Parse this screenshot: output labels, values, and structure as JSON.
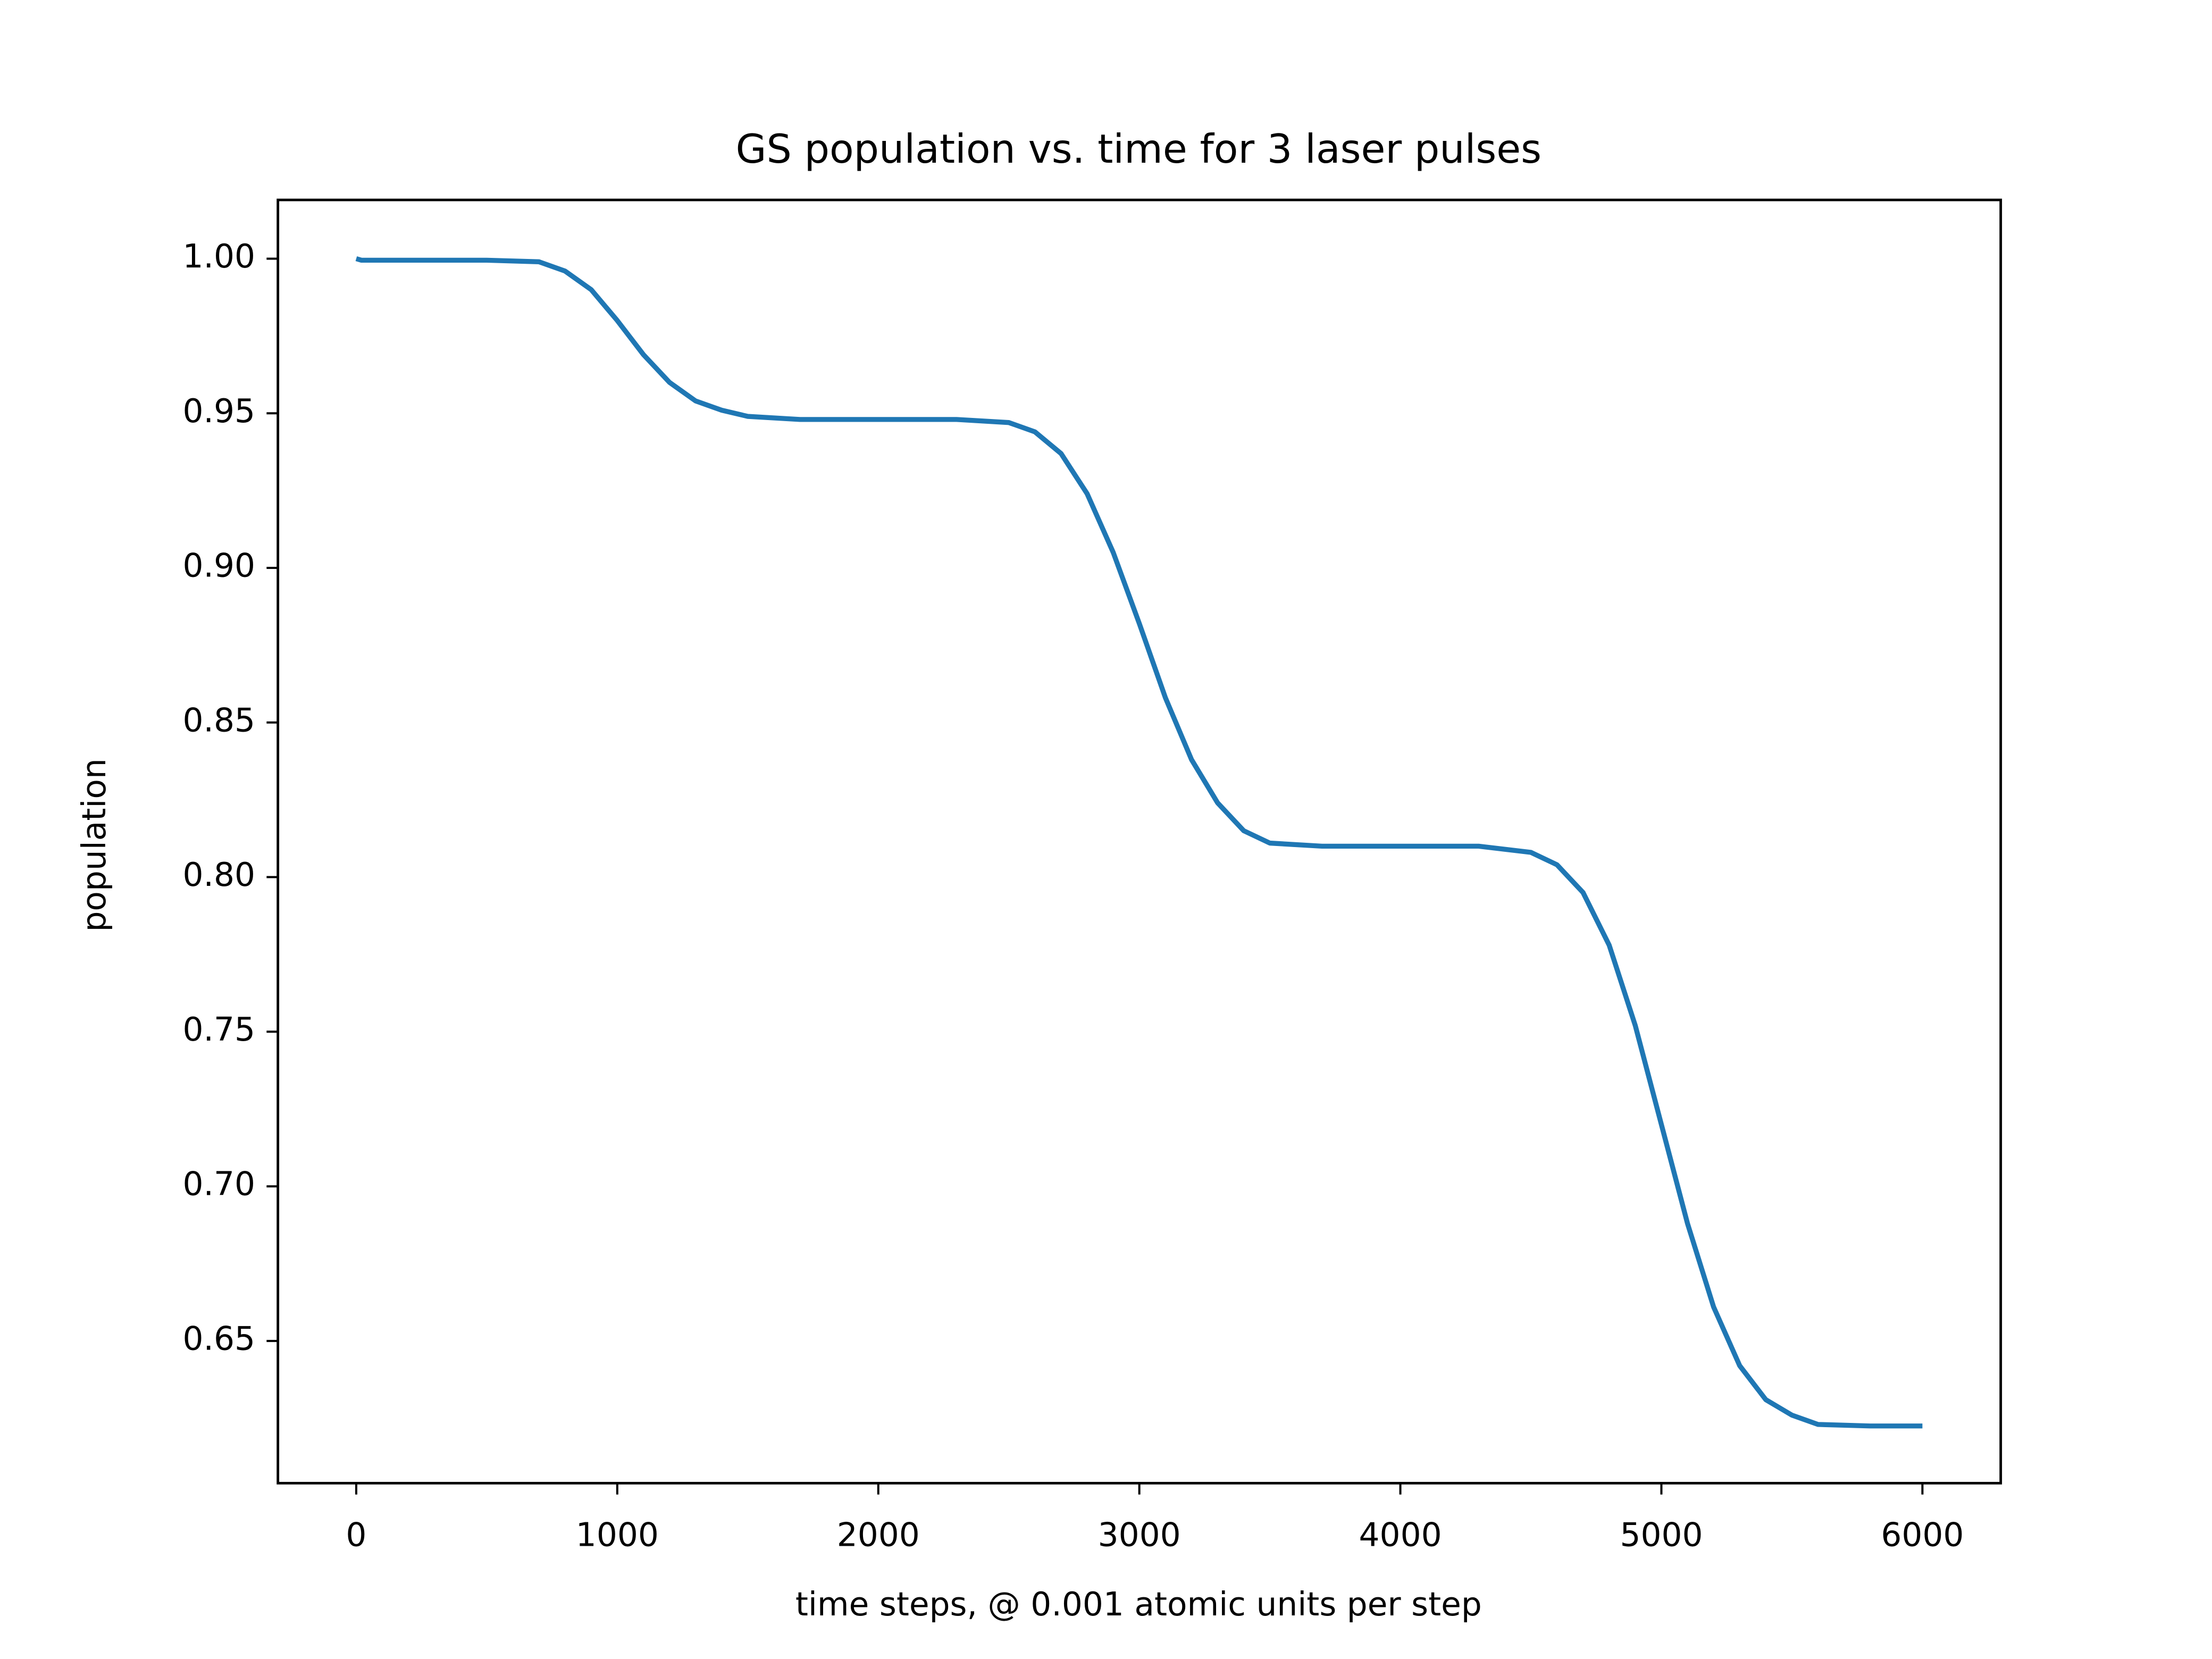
{
  "chart_data": {
    "type": "line",
    "title": "GS population vs. time for 3 laser pulses",
    "x_label": "time steps, @ 0.001 atomic units per step",
    "y_label": "population",
    "x": [
      0,
      20,
      500,
      700,
      800,
      900,
      1000,
      1100,
      1200,
      1300,
      1400,
      1500,
      1700,
      2000,
      2300,
      2500,
      2600,
      2700,
      2800,
      2900,
      3000,
      3100,
      3200,
      3300,
      3400,
      3500,
      3700,
      4000,
      4300,
      4500,
      4600,
      4700,
      4800,
      4900,
      5000,
      5100,
      5200,
      5300,
      5400,
      5500,
      5600,
      5800,
      6000
    ],
    "series": [
      {
        "name": "GS population",
        "color": "#1f77b4",
        "values": [
          1.0,
          0.9995,
          0.9995,
          0.999,
          0.996,
          0.99,
          0.98,
          0.969,
          0.96,
          0.954,
          0.951,
          0.949,
          0.948,
          0.948,
          0.948,
          0.947,
          0.944,
          0.937,
          0.924,
          0.905,
          0.882,
          0.858,
          0.838,
          0.824,
          0.815,
          0.811,
          0.81,
          0.81,
          0.81,
          0.808,
          0.804,
          0.795,
          0.778,
          0.752,
          0.72,
          0.688,
          0.661,
          0.642,
          0.631,
          0.626,
          0.623,
          0.6225,
          0.6225
        ]
      }
    ],
    "xlim": [
      -300,
      6300
    ],
    "ylim": [
      0.604,
      1.019
    ],
    "xticks": [
      0,
      1000,
      2000,
      3000,
      4000,
      5000,
      6000
    ],
    "yticks": [
      {
        "value": 0.65,
        "label": "0.65"
      },
      {
        "value": 0.7,
        "label": "0.70"
      },
      {
        "value": 0.75,
        "label": "0.75"
      },
      {
        "value": 0.8,
        "label": "0.80"
      },
      {
        "value": 0.85,
        "label": "0.85"
      },
      {
        "value": 0.9,
        "label": "0.90"
      },
      {
        "value": 0.95,
        "label": "0.95"
      },
      {
        "value": 1.0,
        "label": "1.00"
      }
    ],
    "grid": false
  }
}
